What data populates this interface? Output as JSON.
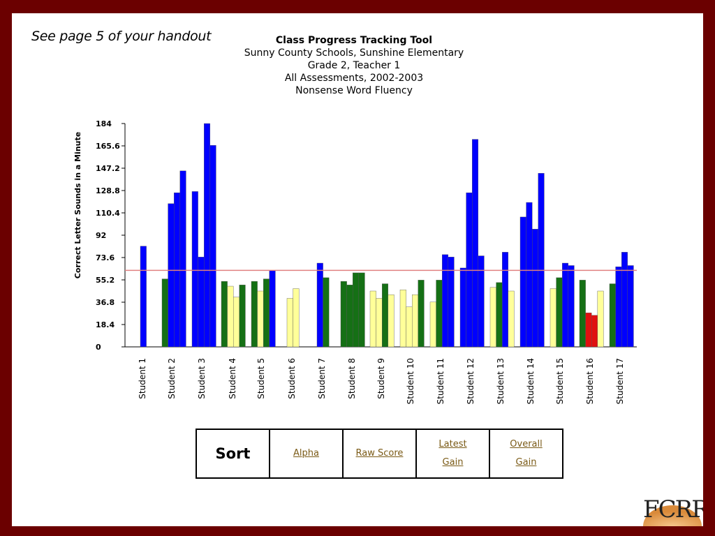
{
  "slide": {
    "note": "See page 5 of your handout",
    "logo_text": "FCRR"
  },
  "titles": {
    "main": "Class Progress Tracking Tool",
    "line2": "Sunny County Schools, Sunshine Elementary",
    "line3": "Grade 2, Teacher 1",
    "line4": "All Assessments, 2002-2003",
    "line5": "Nonsense Word Fluency"
  },
  "sort": {
    "header": "Sort",
    "options": [
      {
        "line1": "Alpha",
        "line2": ""
      },
      {
        "line1": "Raw Score",
        "line2": ""
      },
      {
        "line1": "Latest",
        "line2": "Gain"
      },
      {
        "line1": "Overall",
        "line2": "Gain"
      }
    ]
  },
  "colors": {
    "blue": "#0000ff",
    "green": "#157015",
    "yellow": "#ffff99",
    "red": "#e01010",
    "benchmark": "#e08080",
    "frame": "#6b0000"
  },
  "chart_data": {
    "type": "bar",
    "title": "Class Progress Tracking Tool",
    "ylabel": "Correct Letter Sounds in a Minute",
    "xlabel": "",
    "ylim": [
      0,
      184
    ],
    "yticks": [
      "0",
      "18.4",
      "36.8",
      "55.2",
      "73.6",
      "92",
      "110.4",
      "128.8",
      "147.2",
      "165.6",
      "184"
    ],
    "benchmark_line": 63,
    "grid": false,
    "categories": [
      "Student 1",
      "Student 2",
      "Student 3",
      "Student 4",
      "Student 5",
      "Student 6",
      "Student 7",
      "Student 8",
      "Student 9",
      "Student 10",
      "Student 11",
      "Student 12",
      "Student 13",
      "Student 14",
      "Student 15",
      "Student 16",
      "Student 17"
    ],
    "students": [
      {
        "name": "Student 1",
        "bars": [
          {
            "value": 83,
            "color": "blue"
          }
        ]
      },
      {
        "name": "Student 2",
        "bars": [
          {
            "value": 56,
            "color": "green"
          },
          {
            "value": 118,
            "color": "blue"
          },
          {
            "value": 127,
            "color": "blue"
          },
          {
            "value": 145,
            "color": "blue"
          }
        ]
      },
      {
        "name": "Student 3",
        "bars": [
          {
            "value": 128,
            "color": "blue"
          },
          {
            "value": 74,
            "color": "blue"
          },
          {
            "value": 184,
            "color": "blue"
          },
          {
            "value": 166,
            "color": "blue"
          }
        ]
      },
      {
        "name": "Student 4",
        "bars": [
          {
            "value": 54,
            "color": "green"
          },
          {
            "value": 50,
            "color": "yellow"
          },
          {
            "value": 41,
            "color": "yellow"
          },
          {
            "value": 51,
            "color": "green"
          }
        ]
      },
      {
        "name": "Student 5",
        "bars": [
          {
            "value": 54,
            "color": "green"
          },
          {
            "value": 46,
            "color": "yellow"
          },
          {
            "value": 56,
            "color": "green"
          },
          {
            "value": 63,
            "color": "blue"
          }
        ]
      },
      {
        "name": "Student 6",
        "bars": [
          {
            "value": 40,
            "color": "yellow"
          },
          {
            "value": 48,
            "color": "yellow"
          }
        ]
      },
      {
        "name": "Student 7",
        "bars": [
          {
            "value": 69,
            "color": "blue"
          },
          {
            "value": 57,
            "color": "green"
          }
        ]
      },
      {
        "name": "Student 8",
        "bars": [
          {
            "value": 54,
            "color": "green"
          },
          {
            "value": 51,
            "color": "green"
          },
          {
            "value": 61,
            "color": "green"
          },
          {
            "value": 61,
            "color": "green"
          }
        ]
      },
      {
        "name": "Student 9",
        "bars": [
          {
            "value": 46,
            "color": "yellow"
          },
          {
            "value": 40,
            "color": "yellow"
          },
          {
            "value": 52,
            "color": "green"
          },
          {
            "value": 43,
            "color": "yellow"
          }
        ]
      },
      {
        "name": "Student 10",
        "bars": [
          {
            "value": 47,
            "color": "yellow"
          },
          {
            "value": 33,
            "color": "yellow"
          },
          {
            "value": 43,
            "color": "yellow"
          },
          {
            "value": 55,
            "color": "green"
          }
        ]
      },
      {
        "name": "Student 11",
        "bars": [
          {
            "value": 37,
            "color": "yellow"
          },
          {
            "value": 55,
            "color": "green"
          },
          {
            "value": 76,
            "color": "blue"
          },
          {
            "value": 74,
            "color": "blue"
          }
        ]
      },
      {
        "name": "Student 12",
        "bars": [
          {
            "value": 65,
            "color": "blue"
          },
          {
            "value": 127,
            "color": "blue"
          },
          {
            "value": 171,
            "color": "blue"
          },
          {
            "value": 75,
            "color": "blue"
          }
        ]
      },
      {
        "name": "Student 13",
        "bars": [
          {
            "value": 49,
            "color": "yellow"
          },
          {
            "value": 53,
            "color": "green"
          },
          {
            "value": 78,
            "color": "blue"
          },
          {
            "value": 46,
            "color": "yellow"
          }
        ]
      },
      {
        "name": "Student 14",
        "bars": [
          {
            "value": 107,
            "color": "blue"
          },
          {
            "value": 119,
            "color": "blue"
          },
          {
            "value": 97,
            "color": "blue"
          },
          {
            "value": 143,
            "color": "blue"
          }
        ]
      },
      {
        "name": "Student 15",
        "bars": [
          {
            "value": 48,
            "color": "yellow"
          },
          {
            "value": 57,
            "color": "green"
          },
          {
            "value": 69,
            "color": "blue"
          },
          {
            "value": 67,
            "color": "blue"
          }
        ]
      },
      {
        "name": "Student 16",
        "bars": [
          {
            "value": 55,
            "color": "green"
          },
          {
            "value": 28,
            "color": "red"
          },
          {
            "value": 26,
            "color": "red"
          },
          {
            "value": 46,
            "color": "yellow"
          }
        ]
      },
      {
        "name": "Student 17",
        "bars": [
          {
            "value": 52,
            "color": "green"
          },
          {
            "value": 66,
            "color": "blue"
          },
          {
            "value": 78,
            "color": "blue"
          },
          {
            "value": 67,
            "color": "blue"
          }
        ]
      }
    ]
  }
}
